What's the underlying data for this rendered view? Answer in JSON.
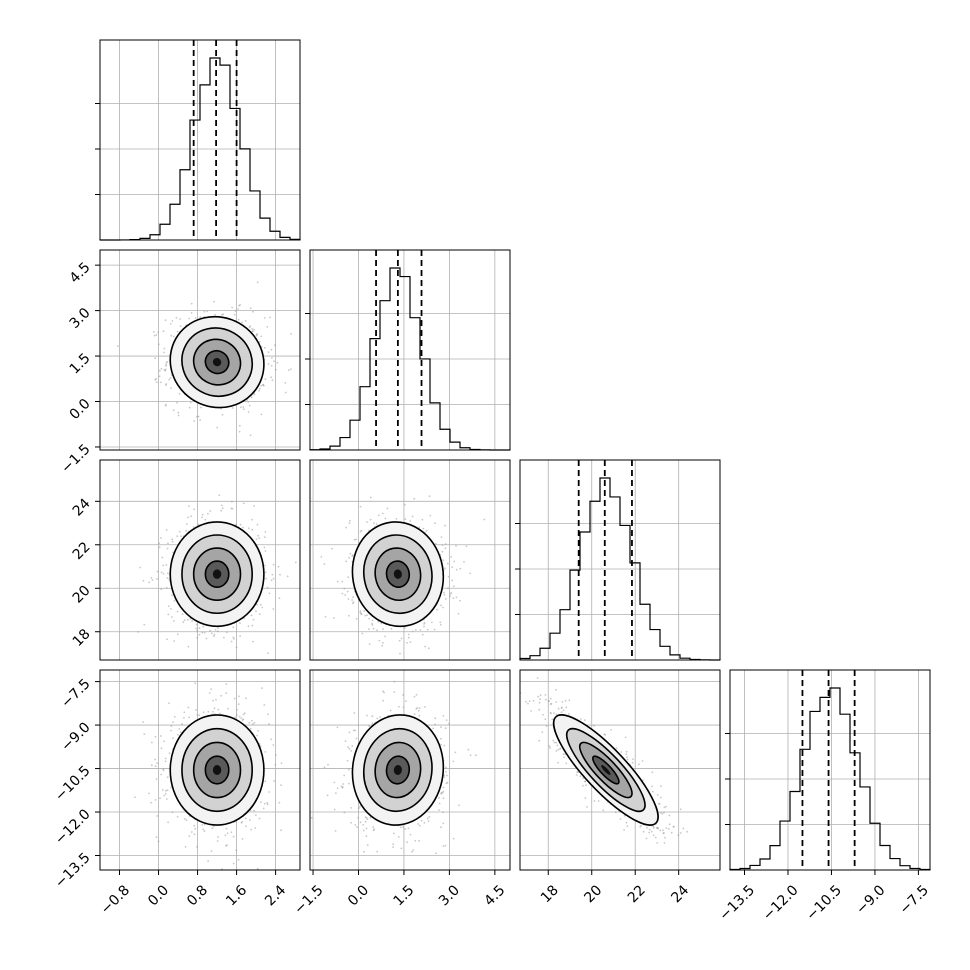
{
  "chart_data": {
    "type": "corner",
    "parameters": [
      {
        "mean": 1.2,
        "std": 0.48,
        "range": [
          -1.2,
          2.9
        ],
        "quantiles": [
          0.72,
          1.18,
          1.6
        ],
        "ticks": [
          "−0.8",
          "0.0",
          "0.8",
          "1.6",
          "2.4"
        ],
        "tick_values": [
          -0.8,
          0.0,
          0.8,
          1.6,
          2.4
        ]
      },
      {
        "mean": 1.3,
        "std": 0.75,
        "range": [
          -1.6,
          5.0
        ],
        "quantiles": [
          0.58,
          1.3,
          2.08
        ],
        "ticks": [
          "−1.5",
          "0.0",
          "1.5",
          "3.0",
          "4.5"
        ],
        "tick_values": [
          -1.5,
          0.0,
          1.5,
          3.0,
          4.5
        ]
      },
      {
        "mean": 20.65,
        "std": 1.2,
        "range": [
          16.7,
          25.9
        ],
        "quantiles": [
          19.4,
          20.6,
          21.85
        ],
        "ticks": [
          "18",
          "20",
          "22",
          "24"
        ],
        "tick_values": [
          18,
          20,
          22,
          24
        ]
      },
      {
        "mean": -10.55,
        "std": 0.95,
        "range": [
          -14.0,
          -7.1
        ],
        "quantiles": [
          -11.5,
          -10.6,
          -9.7
        ],
        "ticks": [
          "−13.5",
          "−12.0",
          "−10.5",
          "−9.0",
          "−7.5"
        ],
        "tick_values": [
          -13.5,
          -12.0,
          -10.5,
          -9.0,
          -7.5
        ]
      }
    ],
    "correlations": [
      {
        "pair": [
          0,
          1
        ],
        "rho": -0.05
      },
      {
        "pair": [
          0,
          2
        ],
        "rho": 0.0
      },
      {
        "pair": [
          1,
          2
        ],
        "rho": -0.05
      },
      {
        "pair": [
          0,
          3
        ],
        "rho": 0.0
      },
      {
        "pair": [
          1,
          3
        ],
        "rho": 0.05
      },
      {
        "pair": [
          2,
          3
        ],
        "rho": -0.85
      }
    ],
    "grid": true,
    "colors": {
      "line": "#000000",
      "scatter": "#9a9a9a",
      "grid": "#b0b0b0"
    }
  }
}
